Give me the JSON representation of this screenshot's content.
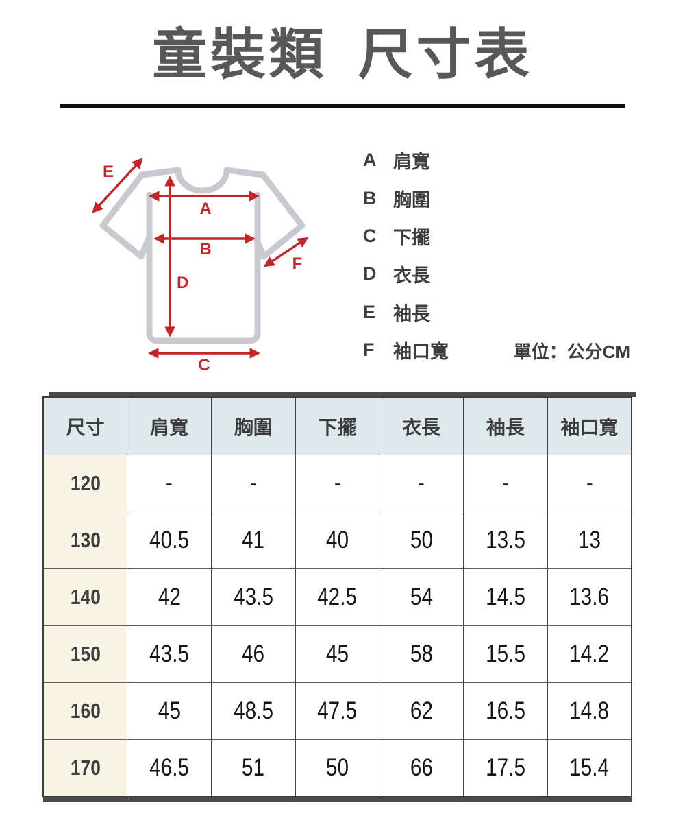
{
  "title": "童裝類 尺寸表",
  "diagram": {
    "legend": [
      {
        "key": "A",
        "label": "肩寬"
      },
      {
        "key": "B",
        "label": "胸圍"
      },
      {
        "key": "C",
        "label": "下擺"
      },
      {
        "key": "D",
        "label": "衣長"
      },
      {
        "key": "E",
        "label": "袖長"
      },
      {
        "key": "F",
        "label": "袖口寬"
      }
    ],
    "unit_note": "單位：公分CM"
  },
  "table": {
    "columns": [
      "尺寸",
      "肩寬",
      "胸圍",
      "下擺",
      "衣長",
      "袖長",
      "袖口寬"
    ],
    "rows": [
      {
        "size": "120",
        "values": [
          "-",
          "-",
          "-",
          "-",
          "-",
          "-"
        ]
      },
      {
        "size": "130",
        "values": [
          "40.5",
          "41",
          "40",
          "50",
          "13.5",
          "13"
        ]
      },
      {
        "size": "140",
        "values": [
          "42",
          "43.5",
          "42.5",
          "54",
          "14.5",
          "13.6"
        ]
      },
      {
        "size": "150",
        "values": [
          "43.5",
          "46",
          "45",
          "58",
          "15.5",
          "14.2"
        ]
      },
      {
        "size": "160",
        "values": [
          "45",
          "48.5",
          "47.5",
          "62",
          "16.5",
          "14.8"
        ]
      },
      {
        "size": "170",
        "values": [
          "46.5",
          "51",
          "50",
          "66",
          "17.5",
          "15.4"
        ]
      }
    ]
  },
  "colors": {
    "accent_red": "#c5242b",
    "shirt_gray": "#c9cad0",
    "title_gray": "#58585a",
    "text_dark": "#3e3e3e",
    "number_dark": "#161616",
    "header_bg": "#dfe9ec",
    "size_col_bg": "#f8f5e6",
    "bar_dark": "#4b4b4b",
    "divider_black": "#0e0e0e"
  }
}
